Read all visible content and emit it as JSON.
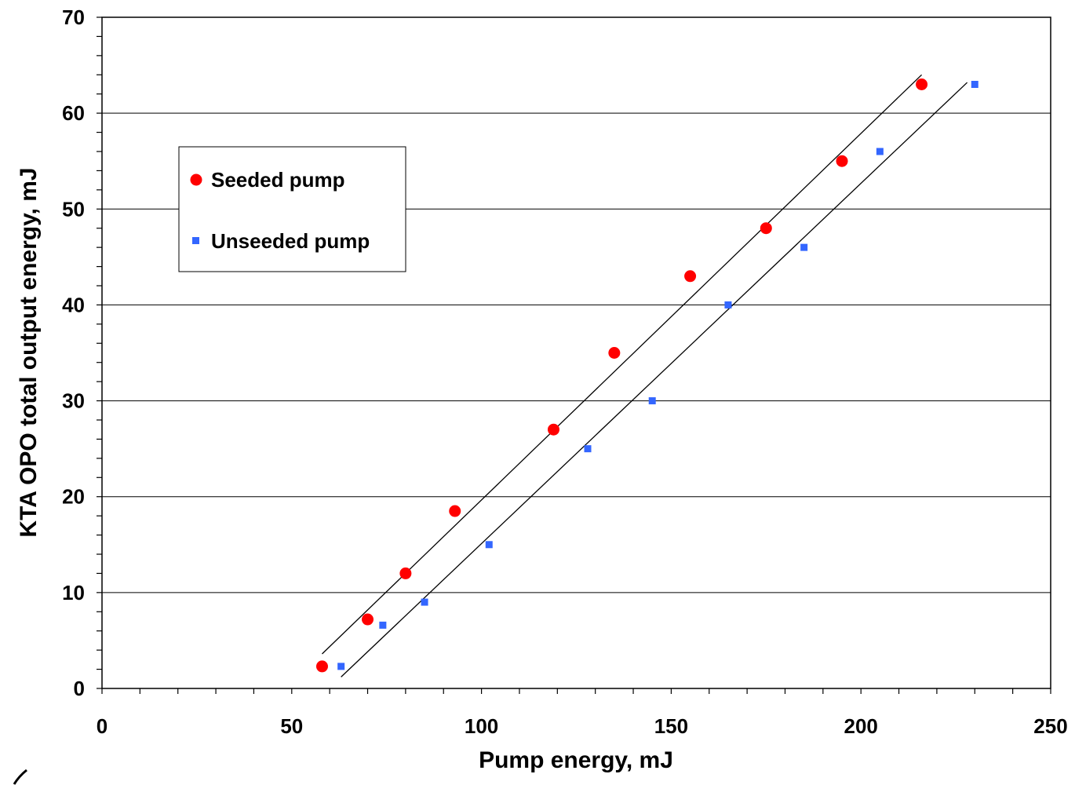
{
  "chart_data": {
    "type": "scatter",
    "xlabel": "Pump energy, mJ",
    "ylabel": "KTA OPO total output energy, mJ",
    "xlim": [
      0,
      250
    ],
    "ylim": [
      0,
      70
    ],
    "x_ticks": [
      0,
      50,
      100,
      150,
      200,
      250
    ],
    "y_ticks": [
      0,
      10,
      20,
      30,
      40,
      50,
      60,
      70
    ],
    "grid": "horizontal",
    "legend_position": "upper-left",
    "series": [
      {
        "name": "Seeded pump",
        "marker": "circle",
        "color": "#ff0000",
        "points": [
          [
            58,
            2.3
          ],
          [
            70,
            7.2
          ],
          [
            80,
            12
          ],
          [
            93,
            18.5
          ],
          [
            119,
            27
          ],
          [
            135,
            35
          ],
          [
            155,
            43
          ],
          [
            175,
            48
          ],
          [
            195,
            55
          ],
          [
            216,
            63
          ]
        ],
        "fit_line": [
          [
            58,
            3.6
          ],
          [
            216,
            64
          ]
        ]
      },
      {
        "name": "Unseeded pump",
        "marker": "square",
        "color": "#3366ff",
        "points": [
          [
            63,
            2.3
          ],
          [
            74,
            6.6
          ],
          [
            85,
            9
          ],
          [
            102,
            15
          ],
          [
            128,
            25
          ],
          [
            145,
            30
          ],
          [
            165,
            40
          ],
          [
            185,
            46
          ],
          [
            205,
            56
          ],
          [
            230,
            63
          ]
        ],
        "fit_line": [
          [
            63,
            1.2
          ],
          [
            228,
            63.2
          ]
        ]
      }
    ]
  }
}
